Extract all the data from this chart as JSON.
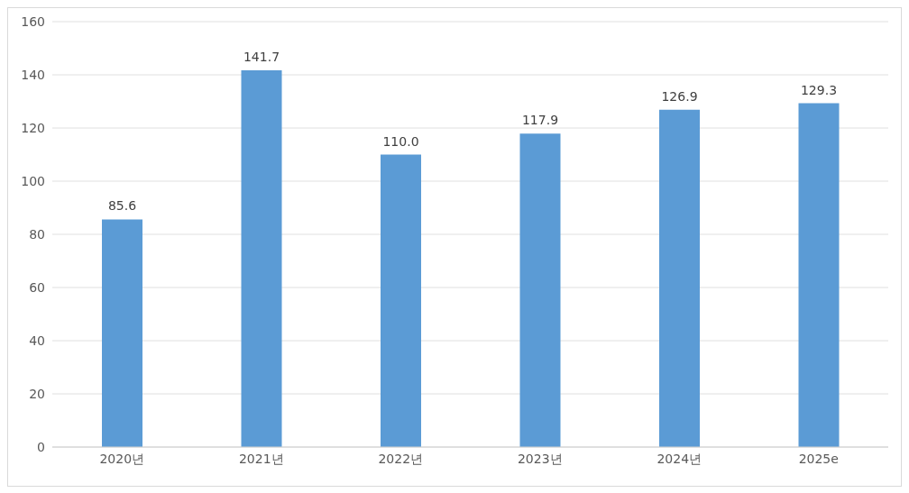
{
  "chart_data": {
    "type": "bar",
    "categories": [
      "2020년",
      "2021년",
      "2022년",
      "2023년",
      "2024년",
      "2025e"
    ],
    "values": [
      85.6,
      141.7,
      110.0,
      117.9,
      126.9,
      129.3
    ],
    "value_labels": [
      "85.6",
      "141.7",
      "110.0",
      "117.9",
      "126.9",
      "129.3"
    ],
    "color": "#5b9bd5",
    "ylim": [
      0,
      160
    ],
    "yticks": [
      0,
      20,
      40,
      60,
      80,
      100,
      120,
      140,
      160
    ],
    "grid": "y"
  }
}
